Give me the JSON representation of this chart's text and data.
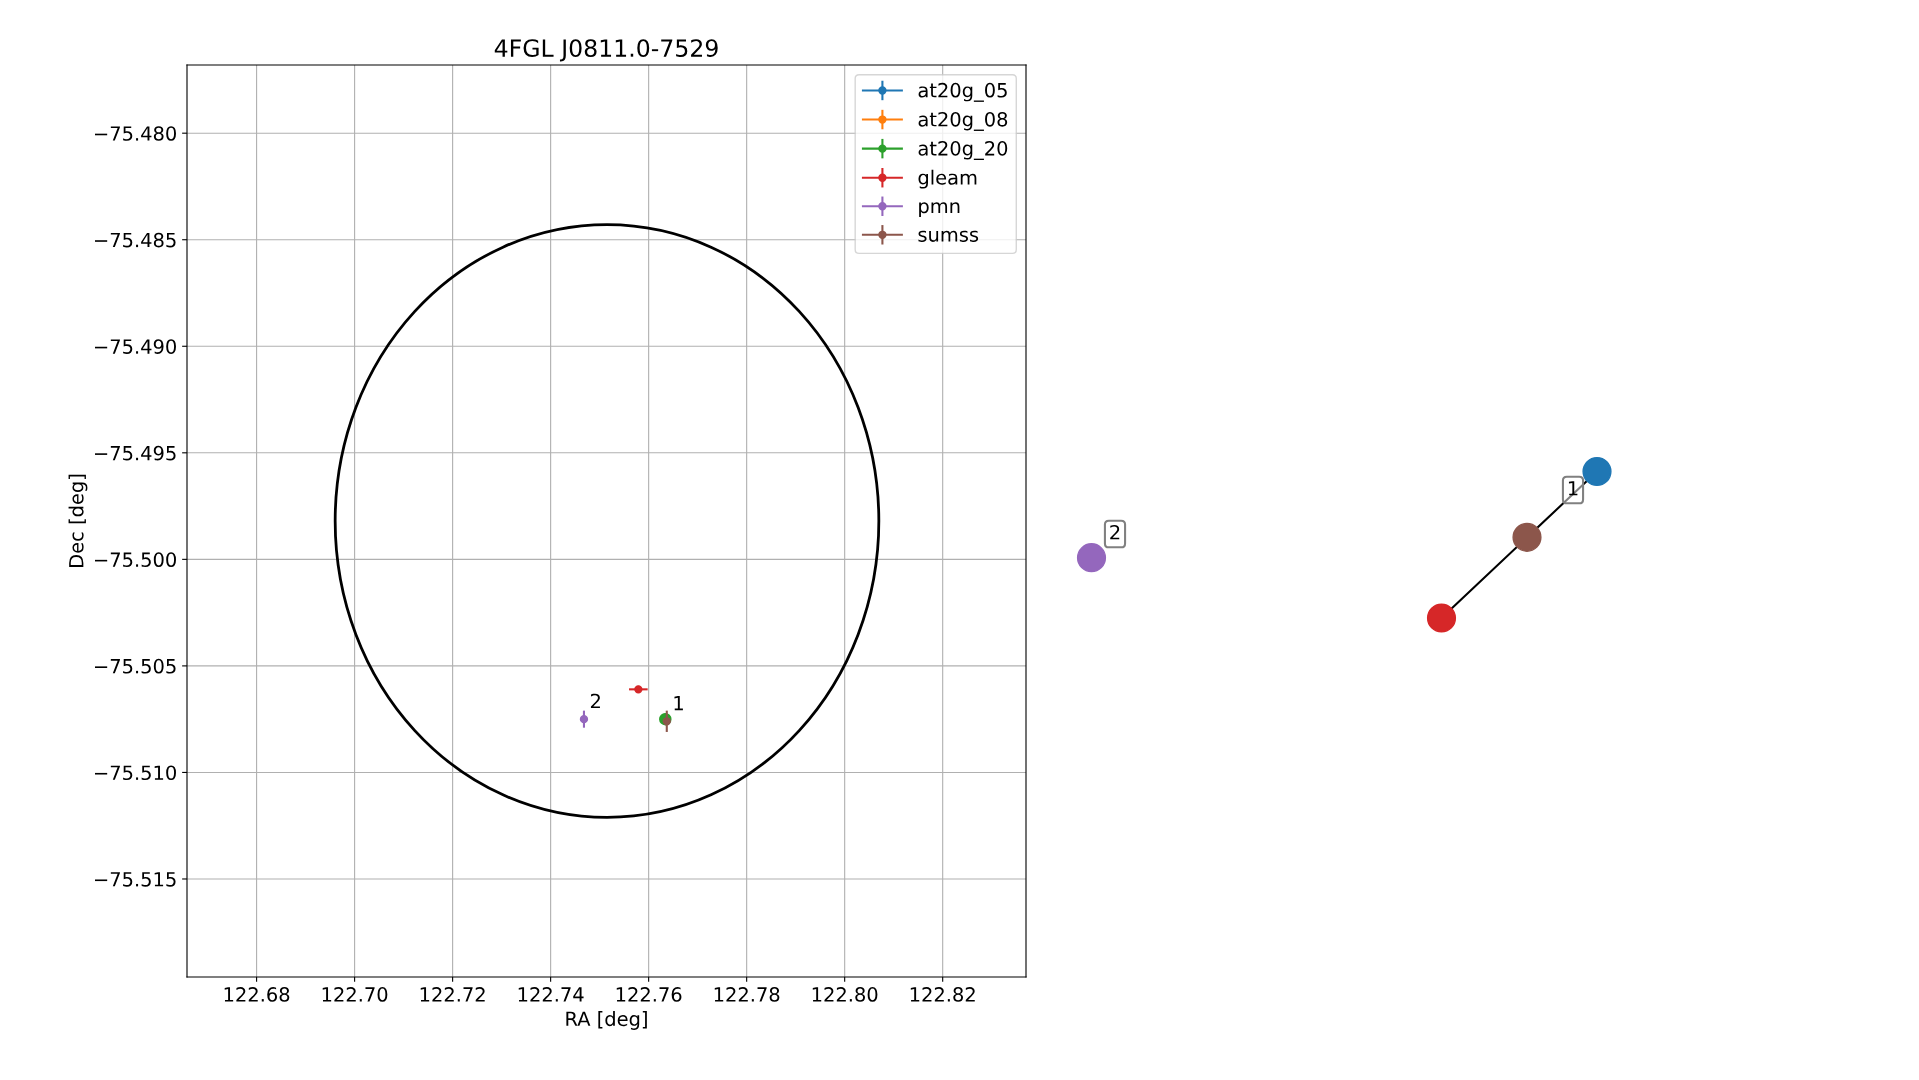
{
  "chart_data": [
    {
      "type": "scatter",
      "title": "4FGL J0811.0-7529",
      "xlabel": "RA [deg]",
      "ylabel": "Dec [deg]",
      "xlim": [
        122.6658,
        122.837
      ],
      "ylim": [
        -75.5196,
        -75.4768
      ],
      "xticks": [
        122.68,
        {
          "value": 122.7,
          "label": "122.70"
        },
        122.72,
        122.74,
        122.76,
        122.78,
        {
          "value": 122.8,
          "label": "122.80"
        },
        122.82
      ],
      "yticks": [
        {
          "value": -75.48,
          "label": "−75.480"
        },
        {
          "value": -75.485,
          "label": "−75.485"
        },
        {
          "value": -75.49,
          "label": "−75.490"
        },
        {
          "value": -75.495,
          "label": "−75.495"
        },
        {
          "value": -75.5,
          "label": "−75.500"
        },
        {
          "value": -75.505,
          "label": "−75.505"
        },
        {
          "value": -75.51,
          "label": "−75.510"
        },
        {
          "value": -75.515,
          "label": "−75.515"
        }
      ],
      "grid": true,
      "legend": "top right",
      "marker": "circle",
      "series": [
        {
          "name": "at20g_05",
          "color": "#1f77b4",
          "values": [
            null
          ]
        },
        {
          "name": "at20g_08",
          "color": "#ff7f0e",
          "values": [
            null
          ]
        },
        {
          "name": "at20g_20",
          "color": "#2ca02c",
          "x": [
            122.7634
          ],
          "values": [
            -75.5075
          ]
        },
        {
          "name": "gleam",
          "color": "#d62728",
          "x": [
            122.7579
          ],
          "values": [
            -75.5061
          ],
          "errors": [
            0.0001
          ],
          "xerrors": [
            0.0019
          ]
        },
        {
          "name": "pmn",
          "color": "#9467bd",
          "x": [
            122.7468
          ],
          "values": [
            -75.5075
          ],
          "errors": [
            0.0004
          ],
          "xerrors": [
            0.0002
          ]
        },
        {
          "name": "sumss",
          "color": "#8c564b",
          "x": [
            122.7637
          ],
          "values": [
            -75.5076
          ],
          "errors": [
            0.0005
          ],
          "xerrors": [
            0.0002
          ]
        }
      ],
      "annotations": [
        {
          "text": "2",
          "x": 122.7468,
          "y": -75.5075
        },
        {
          "text": "1",
          "x": 122.7637,
          "y": -75.5076
        }
      ]
    },
    {
      "type": "other",
      "annotations": [
        "2",
        "1"
      ]
    }
  ]
}
